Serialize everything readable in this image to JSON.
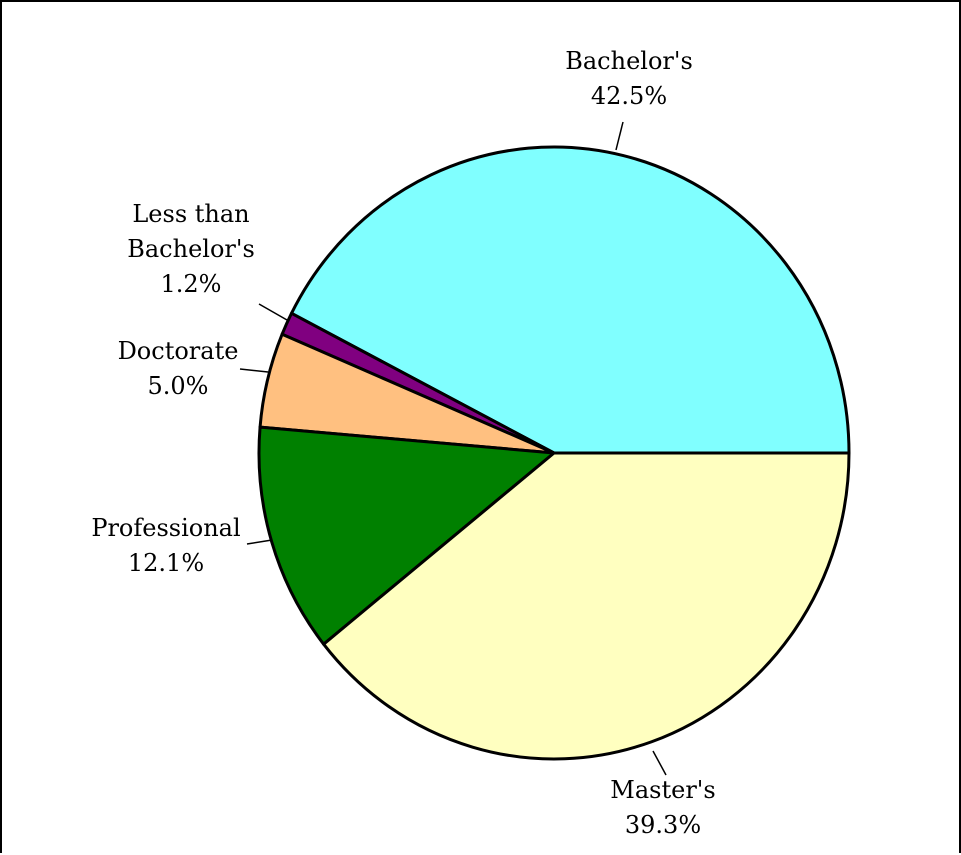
{
  "chart_data": {
    "type": "pie",
    "title": "",
    "start_angle_deg": 0,
    "direction": "counterclockwise",
    "slices": [
      {
        "name": "Bachelor's",
        "lines": [
          "Bachelor's"
        ],
        "value": 42.5,
        "label": "42.5%",
        "color": "#80ffff"
      },
      {
        "name": "Less than Bachelor's",
        "lines": [
          "Less than",
          "Bachelor's"
        ],
        "value": 1.2,
        "label": "1.2%",
        "color": "#800080"
      },
      {
        "name": "Doctorate",
        "lines": [
          "Doctorate"
        ],
        "value": 5.0,
        "label": "5.0%",
        "color": "#ffc080"
      },
      {
        "name": "Professional",
        "lines": [
          "Professional"
        ],
        "value": 12.1,
        "label": "12.1%",
        "color": "#008000"
      },
      {
        "name": "Master's",
        "lines": [
          "Master's"
        ],
        "value": 39.3,
        "label": "39.3%",
        "color": "#ffffc0"
      }
    ]
  }
}
